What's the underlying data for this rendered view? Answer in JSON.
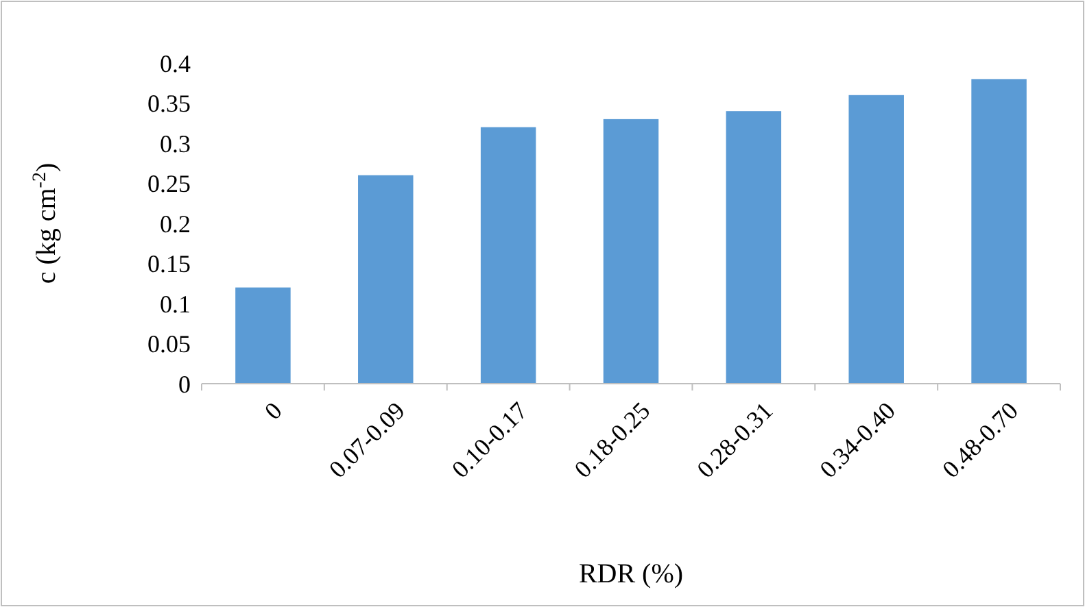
{
  "chart_data": {
    "type": "bar",
    "xlabel": "RDR (%)",
    "ylabel": "c (kg cm$^{-2}$)",
    "categories": [
      "0",
      "0.07-0.09",
      "0.10-0.17",
      "0.18-0.25",
      "0.28-0.31",
      "0.34-0.40",
      "0.48-0.70"
    ],
    "values": [
      0.12,
      0.26,
      0.32,
      0.33,
      0.34,
      0.36,
      0.38
    ],
    "color": "#5b9bd5",
    "ylim": [
      0,
      0.4
    ],
    "yticks": [
      0,
      0.05,
      0.1,
      0.15,
      0.2,
      0.25,
      0.3,
      0.35,
      0.4
    ],
    "grid": false
  }
}
